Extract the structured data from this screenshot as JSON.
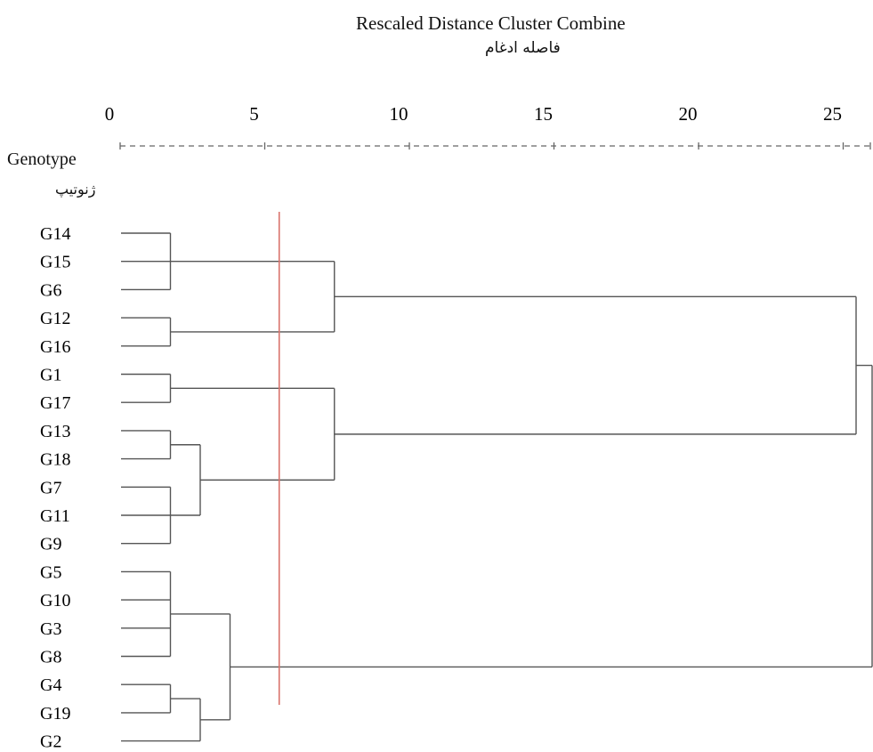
{
  "chart_data": {
    "type": "dendrogram",
    "title": "Rescaled Distance Cluster Combine",
    "subtitle": "فاصله ادغام",
    "ylabel": "Genotype",
    "ylabel_sub": "ژنوتیپ",
    "xticks": [
      0,
      5,
      10,
      15,
      20,
      25
    ],
    "xlim": [
      0,
      26
    ],
    "cut_line": 5.5,
    "colors": {
      "line": "#555555",
      "cut": "#d9736b",
      "axis": "#666666"
    },
    "leaves": [
      "G14",
      "G15",
      "G6",
      "G12",
      "G16",
      "G1",
      "G17",
      "G13",
      "G18",
      "G7",
      "G11",
      "G9",
      "G5",
      "G10",
      "G3",
      "G8",
      "G4",
      "G19",
      "G2"
    ],
    "merges": [
      {
        "members": [
          "G14",
          "G15",
          "G6"
        ],
        "distance": 1.0
      },
      {
        "members": [
          "G12",
          "G16"
        ],
        "distance": 1.0
      },
      {
        "members": [
          "G1",
          "G17"
        ],
        "distance": 1.0
      },
      {
        "members": [
          "G13",
          "G18"
        ],
        "distance": 1.0
      },
      {
        "members": [
          "G7",
          "G11",
          "G9"
        ],
        "distance": 1.0
      },
      {
        "members": [
          "G13",
          "G18",
          "G7",
          "G11",
          "G9"
        ],
        "distance": 2.0
      },
      {
        "members": [
          "G5",
          "G10",
          "G3",
          "G8"
        ],
        "distance": 1.0
      },
      {
        "members": [
          "G4",
          "G19"
        ],
        "distance": 1.0
      },
      {
        "members": [
          "G4",
          "G19",
          "G2"
        ],
        "distance": 2.0
      },
      {
        "members": [
          "G5",
          "G10",
          "G3",
          "G8",
          "G4",
          "G19",
          "G2"
        ],
        "distance": 3.0
      },
      {
        "members": [
          "G14",
          "G15",
          "G6",
          "G12",
          "G16"
        ],
        "distance": 6.5
      },
      {
        "members": [
          "G1",
          "G17",
          "G13",
          "G18",
          "G7",
          "G11",
          "G9"
        ],
        "distance": 6.5
      },
      {
        "members": [
          "G14",
          "G15",
          "G6",
          "G12",
          "G16",
          "G1",
          "G17",
          "G13",
          "G18",
          "G7",
          "G11",
          "G9"
        ],
        "distance": 24.0
      },
      {
        "members": [
          "G14",
          "G15",
          "G6",
          "G12",
          "G16",
          "G1",
          "G17",
          "G13",
          "G18",
          "G7",
          "G11",
          "G9",
          "G5",
          "G10",
          "G3",
          "G8",
          "G4",
          "G19",
          "G2"
        ],
        "distance": 25.0
      }
    ]
  }
}
